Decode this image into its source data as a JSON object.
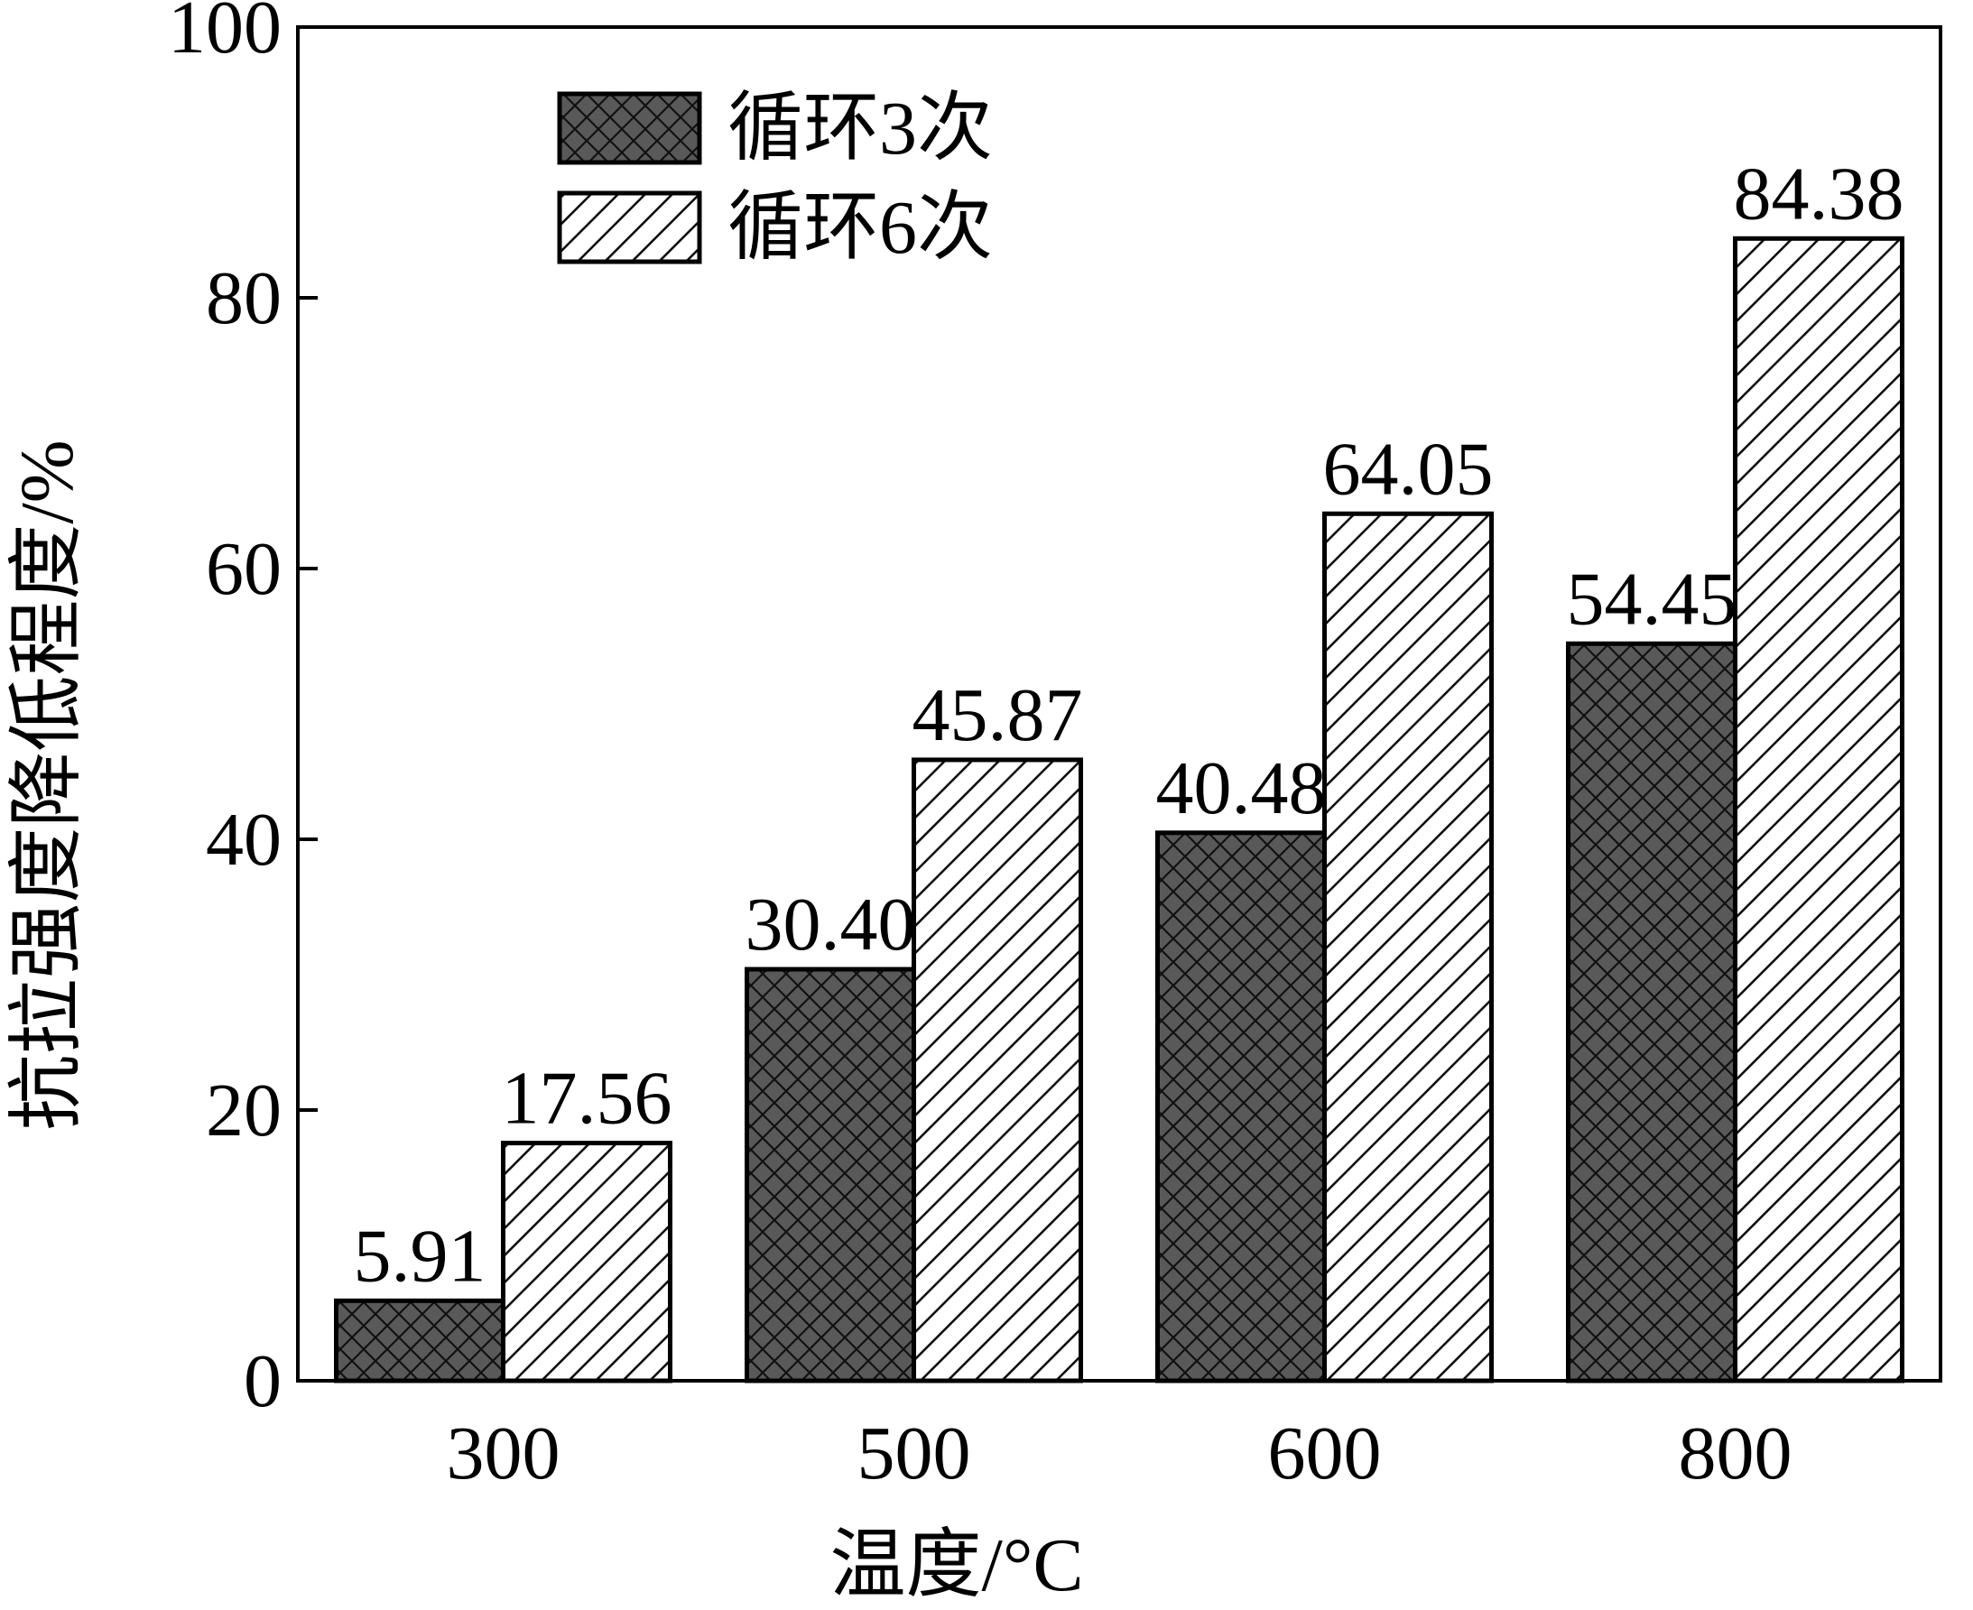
{
  "chart_data": {
    "type": "bar",
    "title": "",
    "xlabel": "温度/°C",
    "ylabel": "抗拉强度降低程度/%",
    "categories": [
      "300",
      "500",
      "600",
      "800"
    ],
    "series": [
      {
        "name": "循环3次",
        "values": [
          5.91,
          30.4,
          40.48,
          54.45
        ],
        "labels": [
          "5.91",
          "30.40",
          "40.48",
          "54.45"
        ],
        "color": "#595959",
        "pattern": "crosshatch"
      },
      {
        "name": "循环6次",
        "values": [
          17.56,
          45.87,
          64.05,
          84.38
        ],
        "labels": [
          "17.56",
          "45.87",
          "64.05",
          "84.38"
        ],
        "color": "#ffffff",
        "pattern": "diagonal-hatch"
      }
    ],
    "ylim": [
      0,
      100
    ],
    "yticks": [
      "0",
      "20",
      "40",
      "60",
      "80",
      "100"
    ],
    "grid": false,
    "legend_position": "top-left"
  }
}
